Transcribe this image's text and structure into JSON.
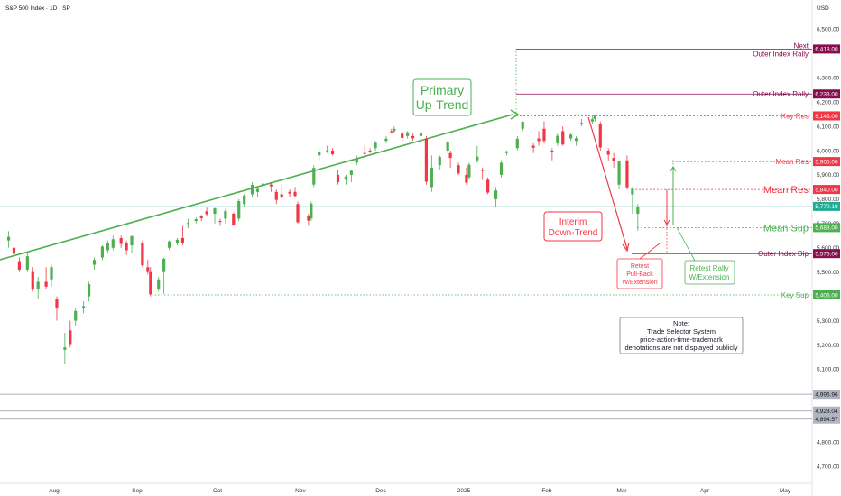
{
  "header": {
    "title": "S&P 500 Index · 1D · SP",
    "currency": "USD"
  },
  "chart_data": {
    "type": "candlestick",
    "title": "S&P 500 Index · 1D · SP",
    "ylabel": "USD",
    "ylim": [
      4630,
      6620
    ],
    "y_ticks": [
      4700,
      4800,
      5100,
      5200,
      5300,
      5400,
      5500,
      5600,
      5700,
      5800,
      5900,
      6000,
      6100,
      6200,
      6300,
      6500
    ],
    "y_tick_labels": [
      "4,700.00",
      "4,800.00",
      "5,100.00",
      "5,200.00",
      "5,300.00",
      "5,400.00",
      "5,500.00",
      "5,600.00",
      "5,700.00",
      "5,800.00",
      "5,900.00",
      "6,000.00",
      "6,100.00",
      "6,200.00",
      "6,300.00",
      "6,500.00"
    ],
    "x_labels": [
      "Aug",
      "Sep",
      "Oct",
      "Nov",
      "Dec",
      "2025",
      "Feb",
      "Mar",
      "Apr",
      "May"
    ],
    "x_dates": [
      "2024-08-01",
      "2024-09-01",
      "2024-10-01",
      "2024-11-01",
      "2024-12-01",
      "2025-01-01",
      "2025-02-01",
      "2025-03-01",
      "2025-04-01",
      "2025-05-01"
    ],
    "candles": [
      [
        "2024-07-15",
        5630,
        5668,
        5600,
        5645
      ],
      [
        "2024-07-17",
        5600,
        5620,
        5560,
        5575
      ],
      [
        "2024-07-19",
        5545,
        5560,
        5500,
        5510
      ],
      [
        "2024-07-22",
        5510,
        5580,
        5500,
        5565
      ],
      [
        "2024-07-24",
        5500,
        5520,
        5420,
        5430
      ],
      [
        "2024-07-26",
        5430,
        5480,
        5390,
        5460
      ],
      [
        "2024-07-29",
        5460,
        5520,
        5430,
        5440
      ],
      [
        "2024-07-31",
        5470,
        5530,
        5440,
        5520
      ],
      [
        "2024-08-02",
        5390,
        5400,
        5300,
        5350
      ],
      [
        "2024-08-05",
        5180,
        5250,
        5120,
        5190
      ],
      [
        "2024-08-07",
        5260,
        5300,
        5190,
        5200
      ],
      [
        "2024-08-09",
        5300,
        5350,
        5280,
        5340
      ],
      [
        "2024-08-12",
        5350,
        5380,
        5330,
        5360
      ],
      [
        "2024-08-14",
        5400,
        5460,
        5380,
        5450
      ],
      [
        "2024-08-16",
        5530,
        5560,
        5510,
        5550
      ],
      [
        "2024-08-19",
        5560,
        5610,
        5550,
        5605
      ],
      [
        "2024-08-21",
        5590,
        5630,
        5580,
        5620
      ],
      [
        "2024-08-23",
        5600,
        5650,
        5590,
        5635
      ],
      [
        "2024-08-26",
        5640,
        5650,
        5600,
        5616
      ],
      [
        "2024-08-28",
        5620,
        5630,
        5570,
        5590
      ],
      [
        "2024-08-30",
        5610,
        5650,
        5580,
        5648
      ],
      [
        "2024-09-03",
        5620,
        5630,
        5520,
        5528
      ],
      [
        "2024-09-05",
        5520,
        5550,
        5490,
        5500
      ],
      [
        "2024-09-06",
        5500,
        5520,
        5400,
        5408
      ],
      [
        "2024-09-09",
        5430,
        5480,
        5420,
        5470
      ],
      [
        "2024-09-11",
        5500,
        5560,
        5410,
        5555
      ],
      [
        "2024-09-13",
        5600,
        5630,
        5590,
        5626
      ],
      [
        "2024-09-16",
        5620,
        5640,
        5610,
        5633
      ],
      [
        "2024-09-18",
        5640,
        5690,
        5610,
        5618
      ],
      [
        "2024-09-20",
        5700,
        5720,
        5680,
        5702
      ],
      [
        "2024-09-23",
        5710,
        5725,
        5700,
        5718
      ],
      [
        "2024-09-25",
        5730,
        5735,
        5710,
        5722
      ],
      [
        "2024-09-27",
        5750,
        5765,
        5730,
        5738
      ],
      [
        "2024-09-30",
        5740,
        5765,
        5700,
        5762
      ],
      [
        "2024-10-02",
        5710,
        5720,
        5690,
        5709
      ],
      [
        "2024-10-04",
        5720,
        5760,
        5700,
        5751
      ],
      [
        "2024-10-07",
        5740,
        5745,
        5690,
        5695
      ],
      [
        "2024-10-09",
        5720,
        5800,
        5710,
        5792
      ],
      [
        "2024-10-11",
        5780,
        5820,
        5770,
        5815
      ],
      [
        "2024-10-14",
        5820,
        5870,
        5810,
        5859
      ],
      [
        "2024-10-16",
        5830,
        5850,
        5810,
        5842
      ],
      [
        "2024-10-18",
        5860,
        5880,
        5850,
        5864
      ],
      [
        "2024-10-21",
        5860,
        5870,
        5830,
        5853
      ],
      [
        "2024-10-23",
        5830,
        5840,
        5780,
        5797
      ],
      [
        "2024-10-25",
        5820,
        5860,
        5800,
        5808
      ],
      [
        "2024-10-28",
        5830,
        5840,
        5810,
        5823
      ],
      [
        "2024-10-30",
        5830,
        5850,
        5810,
        5813
      ],
      [
        "2024-10-31",
        5780,
        5790,
        5700,
        5705
      ],
      [
        "2024-11-04",
        5730,
        5740,
        5690,
        5712
      ],
      [
        "2024-11-05",
        5720,
        5790,
        5710,
        5782
      ],
      [
        "2024-11-06",
        5860,
        5940,
        5850,
        5929
      ],
      [
        "2024-11-08",
        5980,
        6010,
        5960,
        5995
      ],
      [
        "2024-11-11",
        6000,
        6020,
        5990,
        6001
      ],
      [
        "2024-11-13",
        6000,
        6010,
        5980,
        5985
      ],
      [
        "2024-11-15",
        5900,
        5920,
        5860,
        5870
      ],
      [
        "2024-11-18",
        5880,
        5900,
        5860,
        5893
      ],
      [
        "2024-11-20",
        5900,
        5920,
        5870,
        5917
      ],
      [
        "2024-11-22",
        5950,
        5980,
        5940,
        5969
      ],
      [
        "2024-11-25",
        5990,
        6020,
        5980,
        5987
      ],
      [
        "2024-11-27",
        6000,
        6010,
        5990,
        5998
      ],
      [
        "2024-11-29",
        6010,
        6040,
        6000,
        6032
      ],
      [
        "2024-12-03",
        6040,
        6060,
        6030,
        6049
      ],
      [
        "2024-12-05",
        6080,
        6090,
        6070,
        6075
      ],
      [
        "2024-12-06",
        6080,
        6100,
        6070,
        6090
      ],
      [
        "2024-12-09",
        6070,
        6080,
        6040,
        6052
      ],
      [
        "2024-12-11",
        6060,
        6080,
        6050,
        6075
      ],
      [
        "2024-12-13",
        6060,
        6070,
        6040,
        6051
      ],
      [
        "2024-12-16",
        6060,
        6080,
        6050,
        6074
      ],
      [
        "2024-12-18",
        6050,
        6060,
        5860,
        5872
      ],
      [
        "2024-12-20",
        5850,
        5980,
        5830,
        5930
      ],
      [
        "2024-12-23",
        5940,
        5980,
        5920,
        5974
      ],
      [
        "2024-12-26",
        6000,
        6040,
        5990,
        6037
      ],
      [
        "2024-12-27",
        5990,
        6000,
        5930,
        5970
      ],
      [
        "2024-12-30",
        5940,
        5950,
        5900,
        5906
      ],
      [
        "2025-01-02",
        5900,
        5930,
        5860,
        5868
      ],
      [
        "2025-01-03",
        5890,
        5950,
        5880,
        5942
      ],
      [
        "2025-01-06",
        5960,
        6020,
        5950,
        5975
      ],
      [
        "2025-01-08",
        5920,
        5930,
        5880,
        5918
      ],
      [
        "2025-01-10",
        5880,
        5890,
        5820,
        5827
      ],
      [
        "2025-01-13",
        5800,
        5850,
        5770,
        5836
      ],
      [
        "2025-01-15",
        5900,
        5960,
        5890,
        5950
      ],
      [
        "2025-01-17",
        5990,
        6000,
        5980,
        5997
      ],
      [
        "2025-01-21",
        6010,
        6060,
        6000,
        6049
      ],
      [
        "2025-01-23",
        6090,
        6120,
        6080,
        6119
      ],
      [
        "2025-01-27",
        6020,
        6030,
        5990,
        6012
      ],
      [
        "2025-01-29",
        6050,
        6080,
        6020,
        6039
      ],
      [
        "2025-01-31",
        6090,
        6120,
        6030,
        6040
      ],
      [
        "2025-02-03",
        6000,
        6010,
        5960,
        5994
      ],
      [
        "2025-02-05",
        6030,
        6070,
        6020,
        6061
      ],
      [
        "2025-02-07",
        6080,
        6100,
        6020,
        6025
      ],
      [
        "2025-02-10",
        6050,
        6070,
        6040,
        6066
      ],
      [
        "2025-02-12",
        6040,
        6060,
        6020,
        6051
      ],
      [
        "2025-02-14",
        6110,
        6130,
        6100,
        6114
      ],
      [
        "2025-02-18",
        6120,
        6140,
        6110,
        6129
      ],
      [
        "2025-02-19",
        6130,
        6147,
        6120,
        6144
      ],
      [
        "2025-02-21",
        6110,
        6120,
        6000,
        6013
      ],
      [
        "2025-02-24",
        6000,
        6010,
        5960,
        5983
      ],
      [
        "2025-02-26",
        5970,
        5990,
        5930,
        5956
      ],
      [
        "2025-02-28",
        5860,
        5960,
        5840,
        5955
      ],
      [
        "2025-03-03",
        5960,
        5980,
        5840,
        5849
      ],
      [
        "2025-03-05",
        5820,
        5850,
        5740,
        5843
      ],
      [
        "2025-03-07",
        5740,
        5780,
        5670,
        5770
      ]
    ],
    "levels": [
      {
        "label": "Next Outer Index Rally",
        "value": 6418.0,
        "value_label": "6,418.00",
        "color": "#880e4f"
      },
      {
        "label": "Outer Index Rally",
        "value": 6233.0,
        "value_label": "6,233.00",
        "color": "#880e4f"
      },
      {
        "label": "Key Res",
        "value": 6143.0,
        "value_label": "6,143.00",
        "color": "#f23645"
      },
      {
        "label": "Mean Res",
        "value": 5955.0,
        "value_label": "5,955.00",
        "color": "#f23645"
      },
      {
        "label": "Mean Res",
        "value": 5840.0,
        "value_label": "5,840.00",
        "color": "#f23645"
      },
      {
        "label": "",
        "value": 5770.19,
        "value_label": "5,770.19",
        "color": "#22ab94"
      },
      {
        "label": "Mean Sup",
        "value": 5683.0,
        "value_label": "5,683.00",
        "color": "#4caf50"
      },
      {
        "label": "Outer Index Dip",
        "value": 5576.0,
        "value_label": "5,576.00",
        "color": "#880e4f"
      },
      {
        "label": "Key Sup",
        "value": 5406.0,
        "value_label": "5,406.00",
        "color": "#4caf50"
      },
      {
        "label": "",
        "value": 4996.96,
        "value_label": "4,996.96",
        "color": "#b2b5be"
      },
      {
        "label": "",
        "value": 4928.04,
        "value_label": "4,928.04",
        "color": "#b2b5be"
      },
      {
        "label": "",
        "value": 4894.57,
        "value_label": "4,894.57",
        "color": "#b2b5be"
      }
    ],
    "annotations": {
      "primary_trend": {
        "line1": "Primary",
        "line2": "Up-Trend",
        "color": "#4caf50"
      },
      "interim_trend": {
        "line1": "Interim",
        "line2": "Down-Trend",
        "color": "#f23645"
      },
      "retest_pullback": {
        "line1": "Retest",
        "line2": "Pull-Back",
        "line3": "W/Extension",
        "color": "#f23645"
      },
      "retest_rally": {
        "line1": "Retest Rally",
        "line2": "W/Extension",
        "color": "#4caf50"
      },
      "note": {
        "line1": "Note:",
        "line2": "Trade Selector System",
        "line3": "price-action-time-trademark",
        "line4": "denotations are not displayed publicly",
        "color": "#131722"
      }
    },
    "colors": {
      "up": "#4caf50",
      "down": "#f23645",
      "grid": "#f0f3fa"
    },
    "grid": false,
    "legend": "none"
  }
}
